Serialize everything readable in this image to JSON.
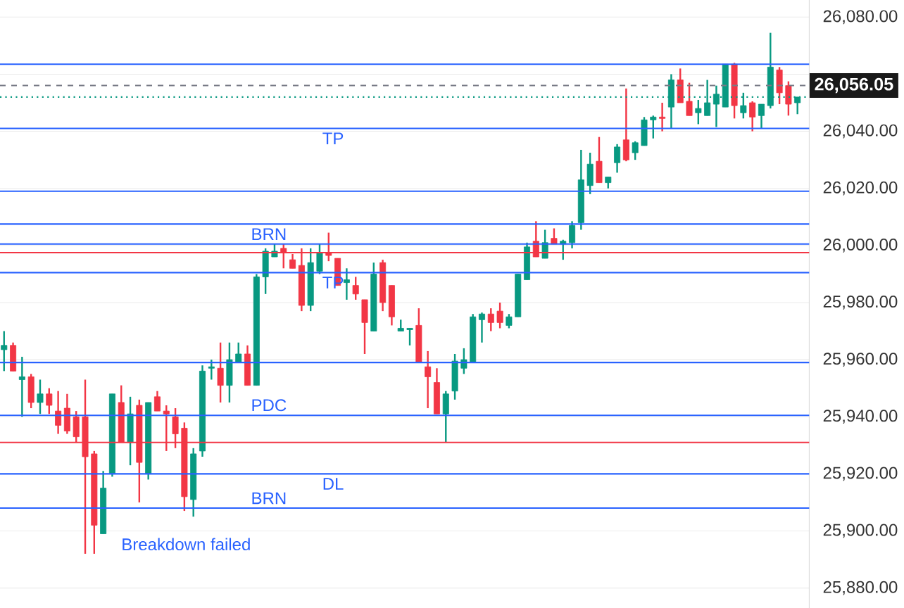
{
  "chart_data": {
    "type": "candlestick",
    "categories": [
      null,
      null,
      null,
      null,
      null,
      null,
      null,
      null,
      null,
      null,
      null,
      null,
      null,
      null,
      null,
      null,
      null,
      null,
      null,
      null,
      null,
      null,
      null,
      null,
      null,
      null,
      null,
      null,
      null,
      null,
      null,
      null,
      null,
      null,
      null,
      null,
      null,
      null,
      null,
      null,
      null,
      null,
      null,
      null,
      null,
      null,
      null,
      null,
      null,
      null,
      null,
      null,
      null,
      null,
      null,
      null,
      null,
      null,
      null,
      null,
      null,
      null,
      null,
      null,
      null,
      null,
      null,
      null,
      null,
      null,
      null,
      null,
      null,
      null,
      null,
      null,
      null,
      null,
      null,
      null,
      null,
      null,
      null,
      null,
      null,
      null,
      null,
      null,
      null
    ],
    "ohlc": [
      [
        25963.5,
        25970,
        25956,
        25965
      ],
      [
        25965,
        25966,
        25956,
        25956
      ],
      [
        25953,
        25961,
        25940,
        25954
      ],
      [
        25954,
        25955,
        25943,
        25945
      ],
      [
        25945,
        25953,
        25941,
        25948
      ],
      [
        25948,
        25950,
        25941,
        25944
      ],
      [
        25942,
        25949,
        25934,
        25937
      ],
      [
        25943,
        25948,
        25934,
        25935
      ],
      [
        25940,
        25942,
        25931,
        25933
      ],
      [
        25940,
        25953,
        25892,
        25926
      ],
      [
        25927,
        25928,
        25892,
        25902
      ],
      [
        25899,
        25921,
        25899,
        25915
      ],
      [
        25920,
        25948,
        25919,
        25948
      ],
      [
        25945,
        25951,
        25931,
        25931
      ],
      [
        25931,
        25947,
        25923,
        25941
      ],
      [
        25944,
        25946,
        25910,
        25924
      ],
      [
        25920,
        25945,
        25918,
        25945
      ],
      [
        25947,
        25949,
        25942,
        25942
      ],
      [
        25942,
        25944,
        25928,
        25941
      ],
      [
        25940,
        25943,
        25929,
        25934
      ],
      [
        25936,
        25938,
        25907,
        25912
      ],
      [
        25911,
        25929,
        25905,
        25927
      ],
      [
        25928,
        25958,
        25926,
        25956
      ],
      [
        25957,
        25960,
        25953,
        25957.5
      ],
      [
        25957,
        25966,
        25945,
        25951
      ],
      [
        25951,
        25966,
        25945,
        25960
      ],
      [
        25959,
        25966,
        25959,
        25962
      ],
      [
        25962,
        25965,
        25951,
        25951
      ],
      [
        25951,
        25990,
        25951,
        25989
      ],
      [
        25989,
        25999,
        25983,
        25998
      ],
      [
        25996,
        26000.5,
        25996,
        25998
      ],
      [
        25999,
        26000.5,
        25992,
        25997.5
      ],
      [
        25995,
        25997,
        25992,
        25992
      ],
      [
        25993,
        25999,
        25977,
        25979
      ],
      [
        25979,
        25999,
        25977,
        25994
      ],
      [
        25991,
        26000.5,
        25990,
        25997.5
      ],
      [
        25997.5,
        26004.5,
        25994.5,
        25996.5
      ],
      [
        25995.5,
        25995.5,
        25986,
        25986
      ],
      [
        25987,
        25992,
        25981,
        25988
      ],
      [
        25986,
        25989,
        25981,
        25983
      ],
      [
        25981,
        25981,
        25962,
        25973
      ],
      [
        25970,
        25994,
        25970,
        25990
      ],
      [
        25994,
        25995,
        25977,
        25980
      ],
      [
        25986,
        25986,
        25972,
        25975
      ],
      [
        25970,
        25974,
        25970,
        25971
      ],
      [
        25970.5,
        25971,
        25965,
        25971
      ],
      [
        25972,
        25978,
        25959,
        25959
      ],
      [
        25957.5,
        25963,
        25943,
        25954
      ],
      [
        25952,
        25957,
        25941,
        25941
      ],
      [
        25941,
        25949,
        25931,
        25948
      ],
      [
        25949,
        25962,
        25946,
        25959.5
      ],
      [
        25957,
        25964,
        25955,
        25960
      ],
      [
        25959,
        25976,
        25959,
        25975
      ],
      [
        25974,
        25976.5,
        25966,
        25976
      ],
      [
        25976,
        25978,
        25970,
        25973
      ],
      [
        25977,
        25980,
        25971,
        25973
      ],
      [
        25972,
        25976,
        25971,
        25975
      ],
      [
        25975,
        25990,
        25975,
        25990
      ],
      [
        25988,
        26001,
        25988,
        25999.5
      ],
      [
        26001.5,
        26008.5,
        25996,
        25996
      ],
      [
        25995.5,
        26005.5,
        25995.5,
        26001
      ],
      [
        26002.5,
        26006,
        26000.5,
        26000.5
      ],
      [
        26000.5,
        26002,
        25995,
        26001.5
      ],
      [
        26001,
        26008.5,
        25999,
        26007
      ],
      [
        26008,
        26033.5,
        26005.5,
        26023
      ],
      [
        26021,
        26032.5,
        26018,
        26028.5
      ],
      [
        26029.5,
        26038,
        26022,
        26022
      ],
      [
        26022,
        26024,
        26020,
        26024
      ],
      [
        26029,
        26035.5,
        26025.5,
        26034.5
      ],
      [
        26037,
        26055,
        26029.5,
        26030
      ],
      [
        26032.5,
        26036.5,
        26030,
        26036
      ],
      [
        26035,
        26045,
        26035,
        26044
      ],
      [
        26044,
        26045.5,
        26037.5,
        26045
      ],
      [
        26045,
        26050,
        26040,
        26044.5
      ],
      [
        26048.5,
        26060,
        26041,
        26058
      ],
      [
        26058,
        26062,
        26050,
        26050
      ],
      [
        26050.5,
        26057,
        26045.5,
        26045.5
      ],
      [
        26046.5,
        26051,
        26042.5,
        26048
      ],
      [
        26045.5,
        26058,
        26045.5,
        26050
      ],
      [
        26049.5,
        26056,
        26041.5,
        26053
      ],
      [
        26048.5,
        26063.5,
        26048.5,
        26063.5
      ],
      [
        26063.5,
        26064,
        26044.5,
        26049
      ],
      [
        26046.5,
        26053.5,
        26044.5,
        26049
      ],
      [
        26050,
        26050.5,
        26040,
        26045
      ],
      [
        26045.5,
        26049.5,
        26041,
        26049.5
      ],
      [
        26049,
        26074.5,
        26048,
        26062.5
      ],
      [
        26061.5,
        26062.5,
        26049.5,
        26053.5
      ],
      [
        26056,
        26057.5,
        26045.5,
        26049.5
      ],
      [
        26050,
        26052,
        26046,
        26052
      ]
    ],
    "colors": [
      "#089981",
      "#f23645",
      "#089981",
      "#f23645",
      "#089981",
      "#f23645",
      "#f23645",
      "#f23645",
      "#f23645",
      "#f23645",
      "#f23645",
      "#089981",
      "#089981",
      "#f23645",
      "#089981",
      "#f23645",
      "#089981",
      "#f23645",
      "#f23645",
      "#f23645",
      "#f23645",
      "#089981",
      "#089981",
      "#089981",
      "#f23645",
      "#089981",
      "#089981",
      "#f23645",
      "#089981",
      "#089981",
      "#089981",
      "#f23645",
      "#f23645",
      "#f23645",
      "#089981",
      "#089981",
      "#f23645",
      "#f23645",
      "#089981",
      "#f23645",
      "#f23645",
      "#089981",
      "#f23645",
      "#f23645",
      "#089981",
      "#089981",
      "#f23645",
      "#f23645",
      "#f23645",
      "#089981",
      "#089981",
      "#089981",
      "#089981",
      "#089981",
      "#f23645",
      "#f23645",
      "#089981",
      "#089981",
      "#089981",
      "#f23645",
      "#089981",
      "#f23645",
      "#089981",
      "#089981",
      "#089981",
      "#089981",
      "#f23645",
      "#089981",
      "#089981",
      "#f23645",
      "#089981",
      "#089981",
      "#089981",
      "#f23645",
      "#089981",
      "#f23645",
      "#f23645",
      "#089981",
      "#089981",
      "#089981",
      "#089981",
      "#f23645",
      "#089981",
      "#f23645",
      "#089981",
      "#089981",
      "#f23645",
      "#f23645",
      "#089981"
    ],
    "ylim": [
      25873,
      26086
    ],
    "yticks": [
      {
        "value": 25880,
        "label": "25,880.00"
      },
      {
        "value": 25900,
        "label": "25,900.00"
      },
      {
        "value": 25920,
        "label": "25,920.00"
      },
      {
        "value": 25940,
        "label": "25,940.00"
      },
      {
        "value": 25960,
        "label": "25,960.00"
      },
      {
        "value": 25980,
        "label": "25,980.00"
      },
      {
        "value": 26000,
        "label": "26,000.00"
      },
      {
        "value": 26020,
        "label": "26,020.00"
      },
      {
        "value": 26040,
        "label": "26,040.00"
      },
      {
        "value": 26060,
        "label": null
      },
      {
        "value": 26080,
        "label": "26,080.00"
      }
    ],
    "grid": "y",
    "ref_lines": [
      {
        "axis": "y",
        "value": 26000.5,
        "label": "BRN",
        "color": "#2962ff"
      },
      {
        "axis": "y",
        "value": 25990.5,
        "label": "TP",
        "color": "#2962ff"
      },
      {
        "axis": "y",
        "value": 25940.5,
        "label": "PDC",
        "color": "#2962ff"
      },
      {
        "axis": "y",
        "value": 25920,
        "label": "DL",
        "color": "#2962ff"
      },
      {
        "axis": "y",
        "value": 25908,
        "label": "BRN",
        "color": "#2962ff"
      },
      {
        "axis": "y",
        "value": 26041,
        "label": "TP",
        "color": "#2962ff"
      },
      {
        "axis": "y",
        "value": 26063.5,
        "color": "#2962ff"
      },
      {
        "axis": "y",
        "value": 26019,
        "color": "#2962ff"
      },
      {
        "axis": "y",
        "value": 25959,
        "color": "#2962ff"
      },
      {
        "axis": "y",
        "value": 26007.5,
        "color": "#2962ff"
      },
      {
        "axis": "y",
        "value": 25931,
        "color": "#f23645"
      },
      {
        "axis": "y",
        "value": 25997.5,
        "color": "#f23645"
      },
      {
        "axis": "y",
        "value": 26052,
        "color": "#089981",
        "line_style": "dotted"
      },
      {
        "axis": "y",
        "value": 26056.05,
        "label": "26,056.05",
        "color": "#787b86",
        "line_style": "dashed"
      }
    ],
    "annotations": [
      "Breakdown failed"
    ]
  }
}
